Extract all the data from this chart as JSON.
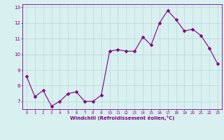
{
  "x": [
    0,
    1,
    2,
    3,
    4,
    5,
    6,
    7,
    8,
    9,
    10,
    11,
    12,
    13,
    14,
    15,
    16,
    17,
    18,
    19,
    20,
    21,
    22,
    23
  ],
  "y": [
    8.6,
    7.3,
    7.7,
    6.7,
    7.0,
    7.5,
    7.6,
    7.0,
    7.0,
    7.4,
    10.2,
    10.3,
    10.2,
    10.2,
    11.1,
    10.6,
    12.0,
    12.8,
    12.2,
    11.5,
    11.6,
    11.2,
    10.4,
    9.4
  ],
  "line_color": "#800080",
  "marker_color": "#800080",
  "bg_color": "#d8f0f0",
  "grid_color": "#b8d8d8",
  "xlabel": "Windchill (Refroidissement éolien,°C)",
  "xlabel_color": "#800080",
  "tick_color": "#800080",
  "ylim": [
    6.5,
    13.2
  ],
  "xlim": [
    -0.5,
    23.5
  ],
  "yticks": [
    7,
    8,
    9,
    10,
    11,
    12,
    13
  ],
  "xticks": [
    0,
    1,
    2,
    3,
    4,
    5,
    6,
    7,
    8,
    9,
    10,
    11,
    12,
    13,
    14,
    15,
    16,
    17,
    18,
    19,
    20,
    21,
    22,
    23
  ],
  "linewidth": 0.8,
  "markersize": 2.5,
  "figwidth": 3.2,
  "figheight": 2.0,
  "dpi": 100
}
